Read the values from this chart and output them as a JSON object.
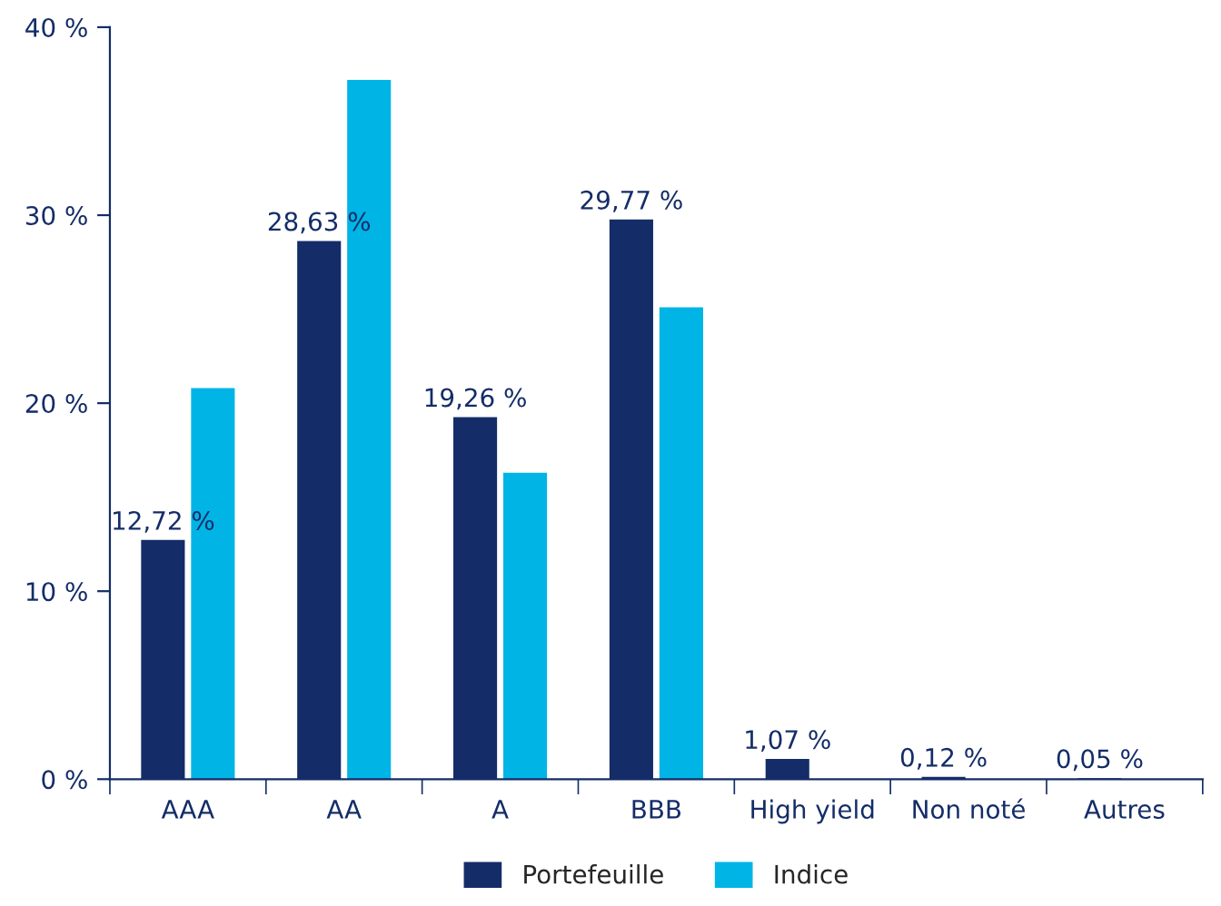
{
  "chart_data": {
    "type": "bar",
    "categories": [
      "AAA",
      "AA",
      "A",
      "BBB",
      "High yield",
      "Non noté",
      "Autres"
    ],
    "series": [
      {
        "name": "Portefeuille",
        "color": "#142d68",
        "values": [
          12.72,
          28.63,
          19.26,
          29.77,
          1.07,
          0.12,
          0.05
        ],
        "value_labels": [
          "12,72 %",
          "28,63 %",
          "19,26 %",
          "29,77 %",
          "1,07 %",
          "0,12 %",
          "0,05 %"
        ]
      },
      {
        "name": "Indice",
        "color": "#00b4e6",
        "values": [
          20.8,
          37.2,
          16.3,
          25.1,
          null,
          null,
          null
        ]
      }
    ],
    "ylim": [
      0,
      40
    ],
    "yticks": [
      {
        "value": 0,
        "label": "0 %"
      },
      {
        "value": 10,
        "label": "10 %"
      },
      {
        "value": 20,
        "label": "20 %"
      },
      {
        "value": 30,
        "label": "30 %"
      },
      {
        "value": 40,
        "label": "40 %"
      }
    ],
    "grid": false,
    "legend": "bottom"
  }
}
